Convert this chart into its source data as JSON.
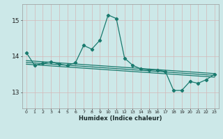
{
  "xlabel": "Humidex (Indice chaleur)",
  "ylabel": "",
  "bg_color": "#cce8e8",
  "line_color": "#1a7a6e",
  "grid_color_major": "#b8d4d4",
  "grid_color_minor": "#d0e8e8",
  "xmin": -0.5,
  "xmax": 23.5,
  "ymin": 12.55,
  "ymax": 15.45,
  "yticks": [
    13,
    14,
    15
  ],
  "line1_x": [
    0,
    23
  ],
  "line1_y": [
    13.88,
    13.52
  ],
  "line2_x": [
    0,
    23
  ],
  "line2_y": [
    13.83,
    13.47
  ],
  "line3_x": [
    0,
    23
  ],
  "line3_y": [
    13.78,
    13.42
  ],
  "main_x": [
    0,
    1,
    2,
    3,
    4,
    5,
    6,
    7,
    8,
    9,
    10,
    11,
    12,
    13,
    14,
    15,
    16,
    17,
    18,
    19,
    20,
    21,
    22,
    23
  ],
  "main_y": [
    14.1,
    13.75,
    13.8,
    13.85,
    13.78,
    13.75,
    13.82,
    14.3,
    14.2,
    14.45,
    15.15,
    15.05,
    13.95,
    13.75,
    13.65,
    13.62,
    13.62,
    13.58,
    13.05,
    13.05,
    13.3,
    13.25,
    13.35,
    13.5
  ]
}
